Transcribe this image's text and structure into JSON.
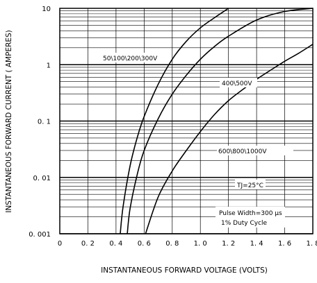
{
  "chart_data": {
    "type": "line",
    "title": "",
    "xlabel": "INSTANTANEOUS FORWARD VOLTAGE (VOLTS)",
    "ylabel": "INSTANTANEOUS FORWARD CURRENT ( AMPERES)",
    "xlim": [
      0,
      1.8
    ],
    "ylim": [
      0.001,
      10
    ],
    "yscale": "log",
    "grid": true,
    "x_ticks": [
      0,
      0.2,
      0.4,
      0.6,
      0.8,
      1.0,
      1.2,
      1.4,
      1.6,
      1.8
    ],
    "x_tick_labels": [
      "0",
      "0. 2",
      "0. 4",
      "0. 6",
      "0. 8",
      "1. 0",
      "1. 2",
      "1. 4",
      "1. 6",
      "1. 8"
    ],
    "y_ticks": [
      0.001,
      0.01,
      0.1,
      1,
      10
    ],
    "y_tick_labels": [
      "0. 001",
      "0. 01",
      "0. 1",
      "1",
      "10"
    ],
    "series": [
      {
        "name": "50\\100\\200\\300V",
        "points": [
          [
            0.43,
            0.001
          ],
          [
            0.45,
            0.003
          ],
          [
            0.5,
            0.016
          ],
          [
            0.55,
            0.05
          ],
          [
            0.6,
            0.12
          ],
          [
            0.7,
            0.45
          ],
          [
            0.8,
            1.25
          ],
          [
            0.9,
            2.6
          ],
          [
            1.0,
            4.5
          ],
          [
            1.1,
            6.8
          ],
          [
            1.2,
            10
          ]
        ]
      },
      {
        "name": "400\\500V",
        "points": [
          [
            0.48,
            0.001
          ],
          [
            0.5,
            0.0028
          ],
          [
            0.55,
            0.011
          ],
          [
            0.6,
            0.03
          ],
          [
            0.7,
            0.11
          ],
          [
            0.8,
            0.3
          ],
          [
            0.9,
            0.65
          ],
          [
            1.0,
            1.25
          ],
          [
            1.1,
            2.1
          ],
          [
            1.2,
            3.2
          ],
          [
            1.4,
            6.2
          ],
          [
            1.6,
            8.8
          ],
          [
            1.8,
            10
          ]
        ]
      },
      {
        "name": "600\\800\\1000V",
        "points": [
          [
            0.61,
            0.001
          ],
          [
            0.7,
            0.0045
          ],
          [
            0.8,
            0.013
          ],
          [
            0.9,
            0.03
          ],
          [
            1.0,
            0.065
          ],
          [
            1.1,
            0.13
          ],
          [
            1.2,
            0.23
          ],
          [
            1.3,
            0.36
          ],
          [
            1.4,
            0.55
          ],
          [
            1.5,
            0.8
          ],
          [
            1.6,
            1.15
          ],
          [
            1.7,
            1.6
          ],
          [
            1.8,
            2.3
          ]
        ]
      }
    ],
    "annotations": {
      "series_1_label": "50\\100\\200\\300V",
      "series_2_label": "400\\500V",
      "series_3_label": "600\\800\\1000V",
      "temperature": "TJ=25°C",
      "pulse_width": "Pulse Width=300 μs",
      "duty_cycle": "1% Duty Cycle"
    }
  }
}
